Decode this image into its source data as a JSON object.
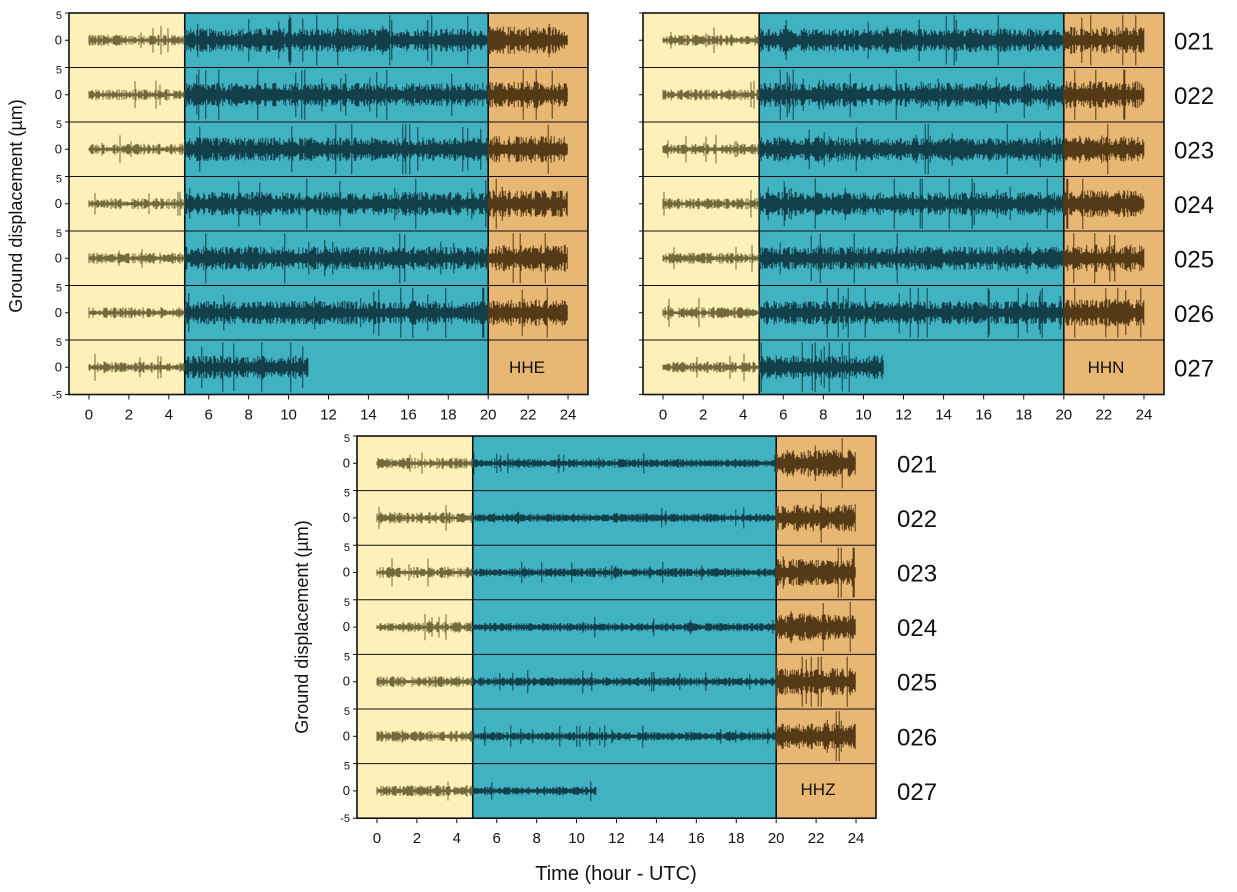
{
  "chart_data": {
    "type": "line",
    "ylabel": "Ground displacement (µm)",
    "xlabel": "Time (hour - UTC)",
    "xlim": [
      -1,
      25
    ],
    "ylim_per_trace": [
      -5,
      5
    ],
    "x_ticks": [
      0,
      2,
      4,
      6,
      8,
      10,
      12,
      14,
      16,
      18,
      20,
      22,
      24
    ],
    "y_ticks": [
      5,
      0,
      -5
    ],
    "traces": [
      "021",
      "022",
      "023",
      "024",
      "025",
      "026",
      "027"
    ],
    "shaded_periods": [
      {
        "from": -1,
        "to": 4.8,
        "color": "#fdf0b9"
      },
      {
        "from": 4.8,
        "to": 20,
        "color": "#41b2c2"
      },
      {
        "from": 20,
        "to": 25,
        "color": "#e8b774"
      }
    ],
    "trace_colors": {
      "early": "#736a3c",
      "mid": "#123f49",
      "late": "#553a18"
    },
    "last_trace_end_hour": 11,
    "grid": false,
    "panels": [
      {
        "channel": "HHE",
        "show_ylabel": true,
        "show_xlabel": false,
        "show_trace_labels": false
      },
      {
        "channel": "HHN",
        "show_ylabel": false,
        "show_xlabel": false,
        "show_trace_labels": true
      },
      {
        "channel": "HHZ",
        "show_ylabel": true,
        "show_xlabel": true,
        "show_trace_labels": true
      }
    ]
  }
}
